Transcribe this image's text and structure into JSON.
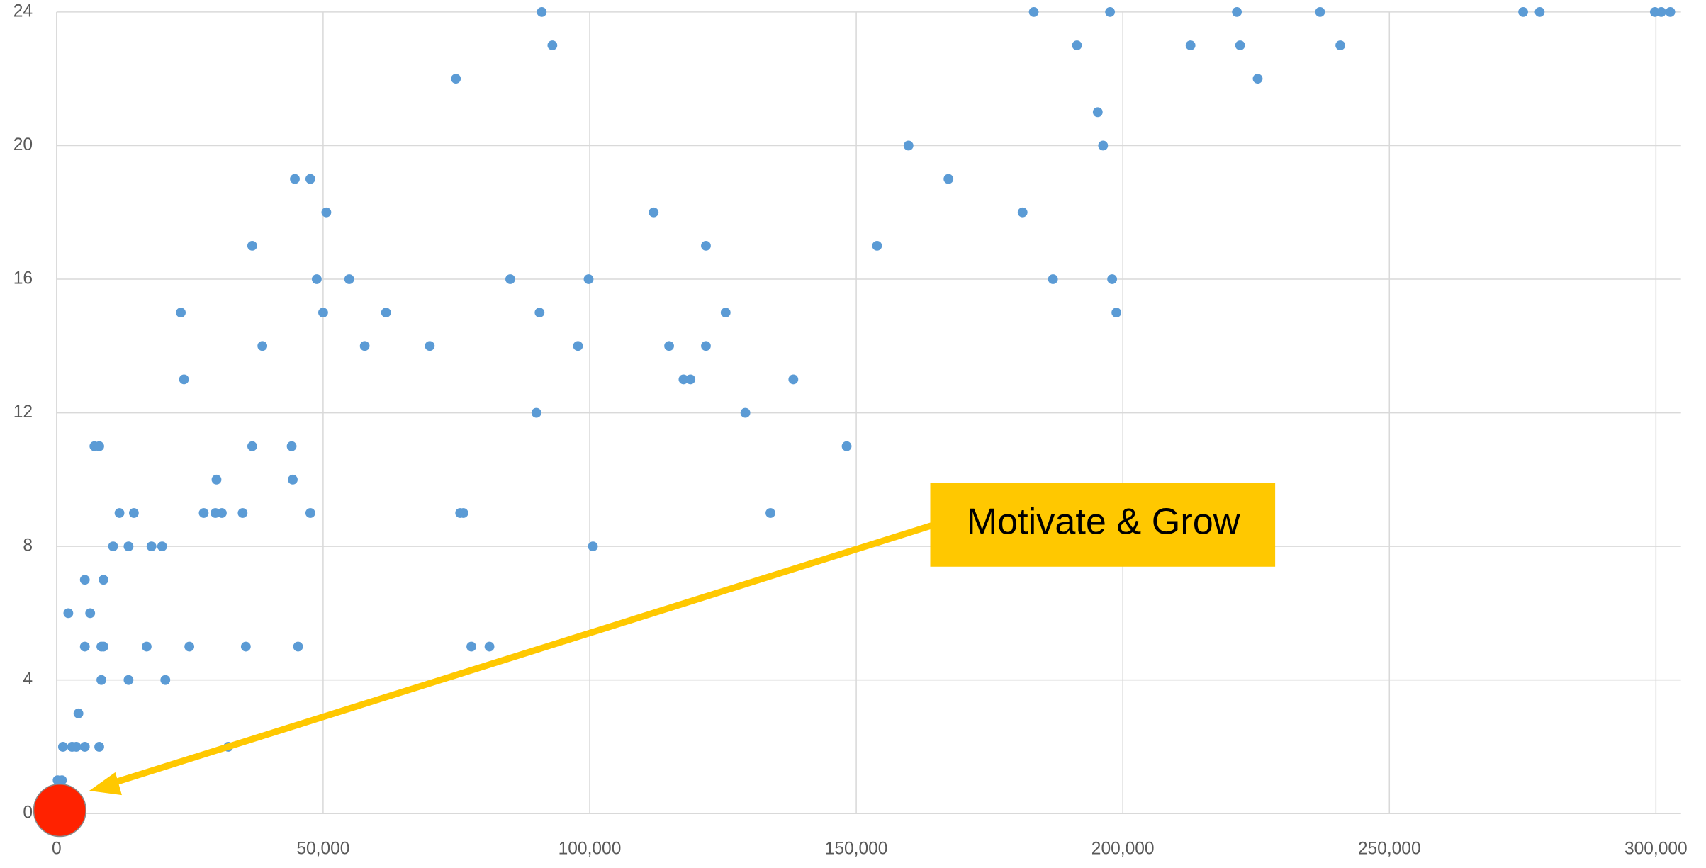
{
  "chart_data": {
    "type": "scatter",
    "color": "#5b9bd5",
    "x": [
      91000,
      93000,
      74900,
      183300,
      197600,
      221400,
      237000,
      275100,
      278200,
      299800,
      301000,
      302700,
      191400,
      212700,
      222000,
      240800,
      225300,
      195300,
      159800,
      196300,
      167300,
      44700,
      47600,
      50600,
      112000,
      181200,
      36700,
      121800,
      153900,
      48800,
      54900,
      85100,
      99800,
      186900,
      198000,
      23300,
      50000,
      61800,
      90600,
      125500,
      198800,
      38600,
      57800,
      70000,
      97800,
      114900,
      121800,
      23900,
      117600,
      118900,
      138200,
      90000,
      129200,
      7100,
      8000,
      36700,
      44100,
      148200,
      30000,
      44300,
      11800,
      14500,
      27600,
      29800,
      31000,
      34900,
      47600,
      75700,
      76300,
      133900,
      10600,
      13500,
      17800,
      19800,
      100600,
      5300,
      8800,
      2200,
      6300,
      5300,
      8400,
      8800,
      16900,
      24900,
      35500,
      45300,
      77800,
      81200,
      8400,
      13500,
      20400,
      4100,
      1200,
      2900,
      3700,
      5300,
      8000,
      32200,
      200,
      1000
    ],
    "values": [
      24,
      23,
      22,
      24,
      24,
      24,
      24,
      24,
      24,
      24,
      24,
      24,
      23,
      23,
      23,
      23,
      22,
      21,
      20,
      20,
      19,
      19,
      19,
      18,
      18,
      18,
      17,
      17,
      17,
      16,
      16,
      16,
      16,
      16,
      16,
      15,
      15,
      15,
      15,
      15,
      15,
      14,
      14,
      14,
      14,
      14,
      14,
      13,
      13,
      13,
      13,
      12,
      12,
      11,
      11,
      11,
      11,
      11,
      10,
      10,
      9,
      9,
      9,
      9,
      9,
      9,
      9,
      9,
      9,
      9,
      8,
      8,
      8,
      8,
      8,
      7,
      7,
      6,
      6,
      5,
      5,
      5,
      5,
      5,
      5,
      5,
      5,
      5,
      4,
      4,
      4,
      3,
      2,
      2,
      2,
      2,
      2,
      2,
      1,
      1
    ],
    "highlight": {
      "x": 600,
      "y": 0,
      "color": "#ff2200"
    },
    "annotation": "Motivate & Grow",
    "xlim": [
      0,
      304700
    ],
    "ylim": [
      0,
      24
    ],
    "xticks": [
      0,
      {
        "value": 50000,
        "label": "50,000"
      },
      {
        "value": 100000,
        "label": "100,000"
      },
      {
        "value": 150000,
        "label": "150,000"
      },
      {
        "value": 200000,
        "label": "200,000"
      },
      {
        "value": 250000,
        "label": "250,000"
      },
      {
        "value": 300000,
        "label": "300,000"
      }
    ],
    "yticks": [
      0,
      4,
      8,
      12,
      16,
      20,
      24
    ],
    "grid": true
  }
}
